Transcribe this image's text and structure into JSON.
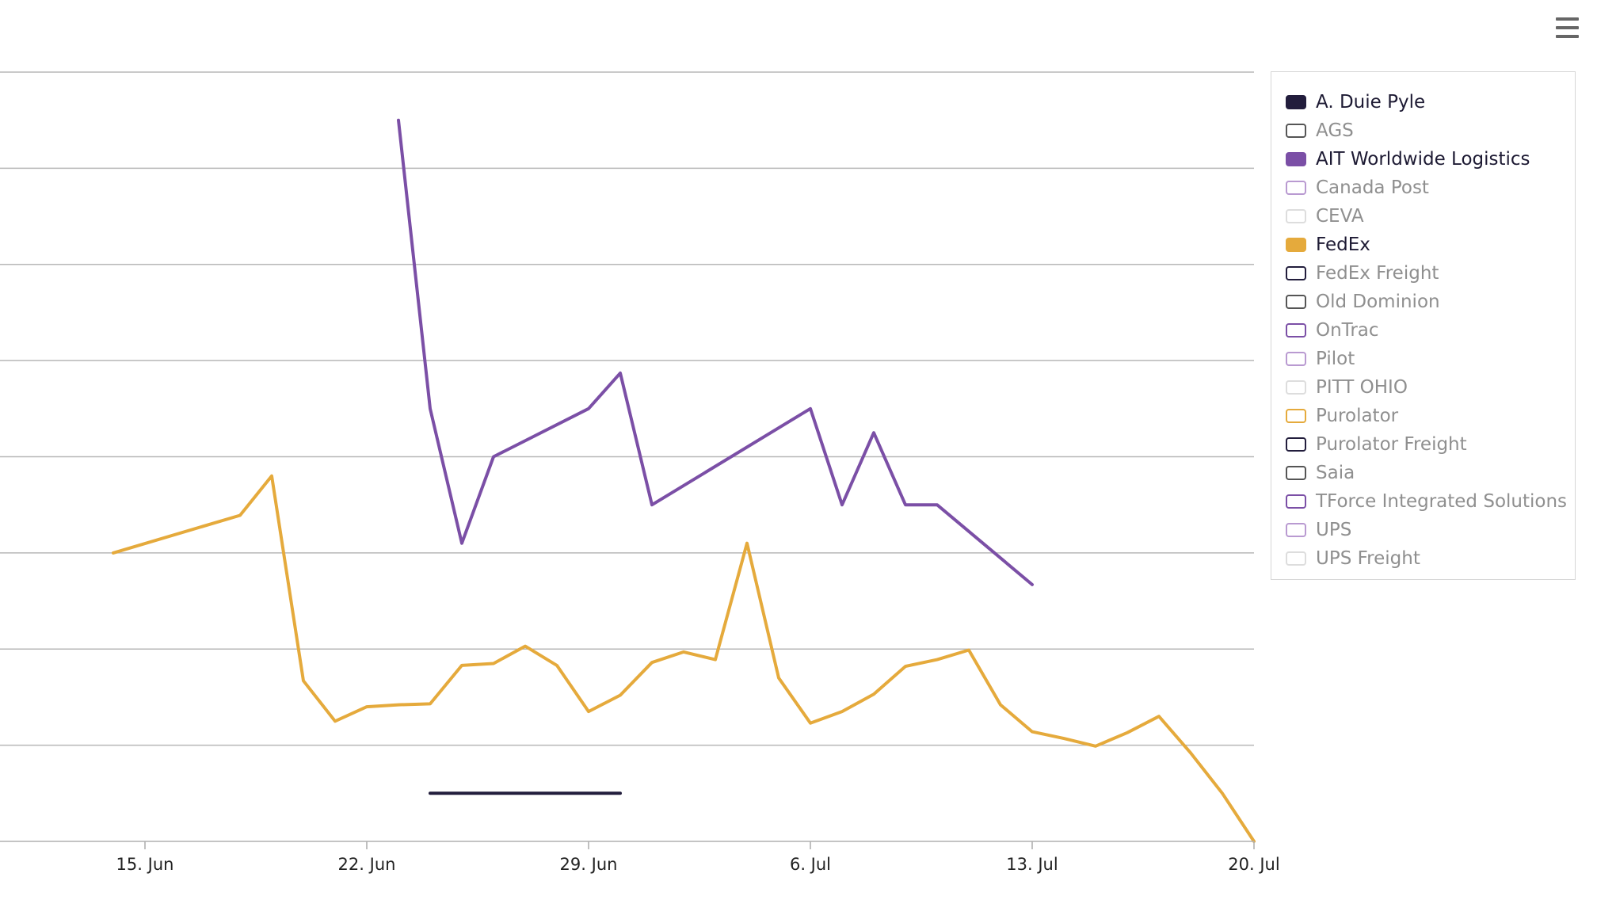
{
  "chart_data": {
    "type": "line",
    "title": "",
    "xlabel": "",
    "ylabel": "",
    "x_axis": {
      "type": "date",
      "range": [
        "2020-06-12",
        "2020-07-20"
      ],
      "ticks": [
        "15. Jun",
        "22. Jun",
        "29. Jun",
        "6. Jul",
        "13. Jul",
        "20. Jul"
      ],
      "tick_dates": [
        "2020-06-15",
        "2020-06-22",
        "2020-06-29",
        "2020-07-06",
        "2020-07-13",
        "2020-07-20"
      ]
    },
    "y_axis": {
      "range": [
        0,
        8
      ],
      "grid": true,
      "labels_visible": false
    },
    "legend_position": "right",
    "series": [
      {
        "name": "A. Duie Pyle",
        "color": "#221d3c",
        "visible": true,
        "points": [
          [
            "2020-06-24",
            0.5
          ],
          [
            "2020-06-30",
            0.5
          ]
        ]
      },
      {
        "name": "AGS",
        "color": "#555555",
        "visible": false,
        "points": []
      },
      {
        "name": "AIT Worldwide Logistics",
        "color": "#7b4fa6",
        "visible": true,
        "points": [
          [
            "2020-06-23",
            7.5
          ],
          [
            "2020-06-24",
            4.5
          ],
          [
            "2020-06-25",
            3.1
          ],
          [
            "2020-06-26",
            4.0
          ],
          [
            "2020-06-29",
            4.5
          ],
          [
            "2020-06-30",
            4.87
          ],
          [
            "2020-07-01",
            3.5
          ],
          [
            "2020-07-06",
            4.5
          ],
          [
            "2020-07-07",
            3.5
          ],
          [
            "2020-07-08",
            4.25
          ],
          [
            "2020-07-09",
            3.5
          ],
          [
            "2020-07-10",
            3.5
          ],
          [
            "2020-07-13",
            2.67
          ]
        ]
      },
      {
        "name": "Canada Post",
        "color": "#b99ad1",
        "visible": false,
        "points": []
      },
      {
        "name": "CEVA",
        "color": "#dddddd",
        "visible": false,
        "points": []
      },
      {
        "name": "FedEx",
        "color": "#e5aa3c",
        "visible": true,
        "points": [
          [
            "2020-06-14",
            3.0
          ],
          [
            "2020-06-18",
            3.39
          ],
          [
            "2020-06-19",
            3.8
          ],
          [
            "2020-06-20",
            1.67
          ],
          [
            "2020-06-21",
            1.25
          ],
          [
            "2020-06-22",
            1.4
          ],
          [
            "2020-06-23",
            1.42
          ],
          [
            "2020-06-24",
            1.43
          ],
          [
            "2020-06-25",
            1.83
          ],
          [
            "2020-06-26",
            1.85
          ],
          [
            "2020-06-27",
            2.03
          ],
          [
            "2020-06-28",
            1.83
          ],
          [
            "2020-06-29",
            1.35
          ],
          [
            "2020-06-30",
            1.52
          ],
          [
            "2020-07-01",
            1.86
          ],
          [
            "2020-07-02",
            1.97
          ],
          [
            "2020-07-03",
            1.89
          ],
          [
            "2020-07-04",
            3.1
          ],
          [
            "2020-07-05",
            1.7
          ],
          [
            "2020-07-06",
            1.23
          ],
          [
            "2020-07-07",
            1.35
          ],
          [
            "2020-07-08",
            1.53
          ],
          [
            "2020-07-09",
            1.82
          ],
          [
            "2020-07-10",
            1.89
          ],
          [
            "2020-07-11",
            1.99
          ],
          [
            "2020-07-12",
            1.42
          ],
          [
            "2020-07-13",
            1.14
          ],
          [
            "2020-07-14",
            1.07
          ],
          [
            "2020-07-15",
            0.99
          ],
          [
            "2020-07-16",
            1.13
          ],
          [
            "2020-07-17",
            1.3
          ],
          [
            "2020-07-18",
            0.92
          ],
          [
            "2020-07-19",
            0.5
          ],
          [
            "2020-07-20",
            0.0
          ]
        ]
      },
      {
        "name": "FedEx Freight",
        "color": "#221d3c",
        "visible": false,
        "points": []
      },
      {
        "name": "Old Dominion",
        "color": "#555555",
        "visible": false,
        "points": []
      },
      {
        "name": "OnTrac",
        "color": "#7b4fa6",
        "visible": false,
        "points": []
      },
      {
        "name": "Pilot",
        "color": "#b99ad1",
        "visible": false,
        "points": []
      },
      {
        "name": "PITT OHIO",
        "color": "#dddddd",
        "visible": false,
        "points": []
      },
      {
        "name": "Purolator",
        "color": "#e5aa3c",
        "visible": false,
        "points": []
      },
      {
        "name": "Purolator Freight",
        "color": "#221d3c",
        "visible": false,
        "points": []
      },
      {
        "name": "Saia",
        "color": "#555555",
        "visible": false,
        "points": []
      },
      {
        "name": "TForce Integrated Solutions",
        "color": "#7b4fa6",
        "visible": false,
        "points": []
      },
      {
        "name": "UPS",
        "color": "#b99ad1",
        "visible": false,
        "points": []
      },
      {
        "name": "UPS Freight",
        "color": "#dddddd",
        "visible": false,
        "points": []
      }
    ]
  },
  "menu": {
    "icon": "hamburger-menu-icon"
  }
}
